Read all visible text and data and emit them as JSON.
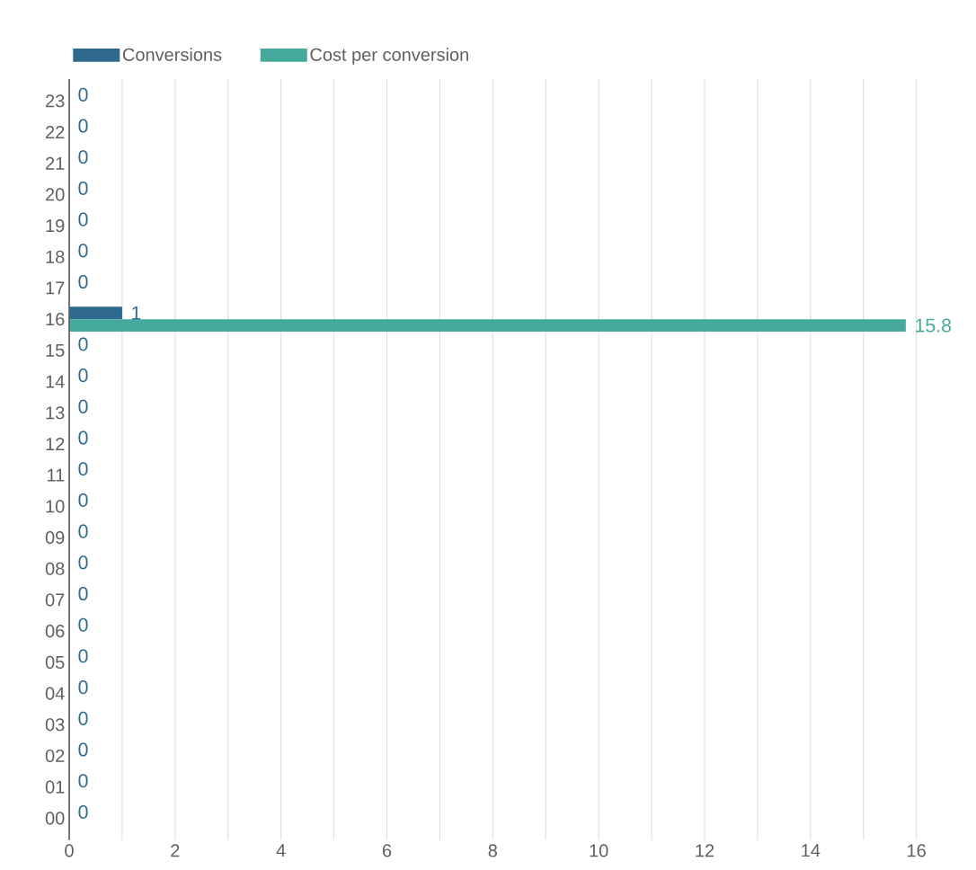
{
  "chart_data": {
    "type": "bar",
    "orientation": "horizontal",
    "categories": [
      "23",
      "22",
      "21",
      "20",
      "19",
      "18",
      "17",
      "16",
      "15",
      "14",
      "13",
      "12",
      "11",
      "10",
      "09",
      "08",
      "07",
      "06",
      "05",
      "04",
      "03",
      "02",
      "01",
      "00"
    ],
    "series": [
      {
        "name": "Conversions",
        "color": "#2e6a8e",
        "values": [
          0,
          0,
          0,
          0,
          0,
          0,
          0,
          1,
          0,
          0,
          0,
          0,
          0,
          0,
          0,
          0,
          0,
          0,
          0,
          0,
          0,
          0,
          0,
          0
        ]
      },
      {
        "name": "Cost per conversion",
        "color": "#45aa9c",
        "values": [
          null,
          null,
          null,
          null,
          null,
          null,
          null,
          15.8,
          null,
          null,
          null,
          null,
          null,
          null,
          null,
          null,
          null,
          null,
          null,
          null,
          null,
          null,
          null,
          null
        ]
      }
    ],
    "xlim": [
      0,
      16
    ],
    "xticks": [
      0,
      {
        "value": 1,
        "label": null
      },
      2,
      {
        "value": 3,
        "label": null
      },
      4,
      {
        "value": 5,
        "label": null
      },
      6,
      {
        "value": 7,
        "label": null
      },
      8,
      {
        "value": 9,
        "label": null
      },
      10,
      {
        "value": 11,
        "label": null
      },
      12,
      {
        "value": 13,
        "label": null
      },
      14,
      {
        "value": 15,
        "label": null
      },
      16
    ],
    "grid": "x",
    "legend": "top left",
    "data_labels": true
  }
}
